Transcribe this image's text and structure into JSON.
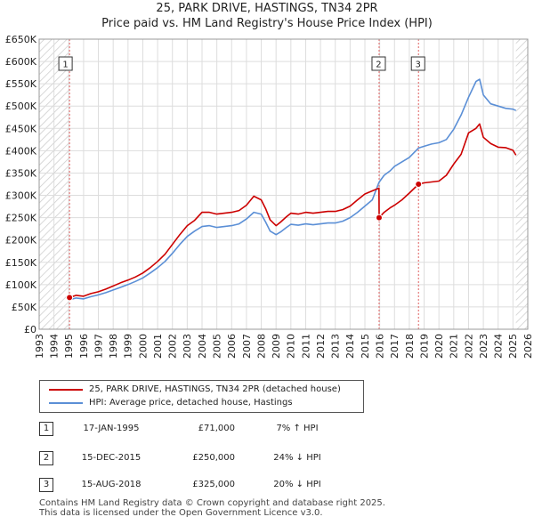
{
  "header": {
    "title_line1": "25, PARK DRIVE, HASTINGS, TN34 2PR",
    "title_line2": "Price paid vs. HM Land Registry's House Price Index (HPI)"
  },
  "chart_data": {
    "type": "line",
    "title": "25, PARK DRIVE, HASTINGS, TN34 2PR",
    "subtitle": "Price paid vs. HM Land Registry's House Price Index (HPI)",
    "xlabel": "",
    "ylabel": "",
    "xlim": [
      1993,
      2026
    ],
    "ylim": [
      0,
      650000
    ],
    "x_ticks": [
      1993,
      1994,
      1995,
      1996,
      1997,
      1998,
      1999,
      2000,
      2001,
      2002,
      2003,
      2004,
      2005,
      2006,
      2007,
      2008,
      2009,
      2010,
      2011,
      2012,
      2013,
      2014,
      2015,
      2016,
      2017,
      2018,
      2019,
      2020,
      2021,
      2022,
      2023,
      2024,
      2025,
      2026
    ],
    "y_ticks": [
      0,
      50000,
      100000,
      150000,
      200000,
      250000,
      300000,
      350000,
      400000,
      450000,
      500000,
      550000,
      600000,
      650000
    ],
    "y_tick_labels": [
      "£0",
      "£50K",
      "£100K",
      "£150K",
      "£200K",
      "£250K",
      "£300K",
      "£350K",
      "£400K",
      "£450K",
      "£500K",
      "£550K",
      "£600K",
      "£650K"
    ],
    "grid": true,
    "hatched_regions": [
      [
        1993,
        1995.0
      ],
      [
        2025.2,
        2026
      ]
    ],
    "series": [
      {
        "name": "25, PARK DRIVE, HASTINGS, TN34 2PR (detached house)",
        "color": "#cc0000",
        "x": [
          1995.05,
          1995.5,
          1996,
          1996.5,
          1997,
          1997.5,
          1998,
          1998.5,
          1999,
          1999.5,
          2000,
          2000.5,
          2001,
          2001.5,
          2002,
          2002.5,
          2003,
          2003.5,
          2004,
          2004.5,
          2005,
          2005.5,
          2006,
          2006.5,
          2007,
          2007.5,
          2008,
          2008.3,
          2008.6,
          2009,
          2009.3,
          2009.7,
          2010,
          2010.5,
          2011,
          2011.5,
          2012,
          2012.5,
          2013,
          2013.5,
          2014,
          2014.5,
          2015,
          2015.5,
          2015.95,
          2015.96,
          2016.3,
          2016.7,
          2017,
          2017.5,
          2018,
          2018.62,
          2019,
          2019.5,
          2020,
          2020.5,
          2021,
          2021.5,
          2022,
          2022.5,
          2022.75,
          2023,
          2023.5,
          2024,
          2024.5,
          2025,
          2025.2
        ],
        "y": [
          71000,
          76000,
          74000,
          80000,
          84000,
          90000,
          97000,
          104000,
          110000,
          117000,
          126000,
          138000,
          152000,
          168000,
          190000,
          212000,
          232000,
          244000,
          262000,
          262000,
          258000,
          260000,
          262000,
          266000,
          278000,
          298000,
          290000,
          270000,
          245000,
          232000,
          240000,
          252000,
          260000,
          258000,
          262000,
          260000,
          262000,
          264000,
          264000,
          268000,
          276000,
          290000,
          303000,
          310000,
          316000,
          250000,
          262000,
          272000,
          278000,
          290000,
          305000,
          325000,
          328000,
          330000,
          332000,
          345000,
          370000,
          392000,
          440000,
          450000,
          460000,
          430000,
          416000,
          408000,
          407000,
          401000,
          390000
        ]
      },
      {
        "name": "HPI: Average price, detached house, Hastings",
        "color": "#5b8fd6",
        "x": [
          1995.05,
          1995.5,
          1996,
          1996.5,
          1997,
          1997.5,
          1998,
          1998.5,
          1999,
          1999.5,
          2000,
          2000.5,
          2001,
          2001.5,
          2002,
          2002.5,
          2003,
          2003.5,
          2004,
          2004.5,
          2005,
          2005.5,
          2006,
          2006.5,
          2007,
          2007.5,
          2008,
          2008.3,
          2008.6,
          2009,
          2009.3,
          2009.7,
          2010,
          2010.5,
          2011,
          2011.5,
          2012,
          2012.5,
          2013,
          2013.5,
          2014,
          2014.5,
          2015,
          2015.5,
          2015.95,
          2016.3,
          2016.7,
          2017,
          2017.5,
          2018,
          2018.62,
          2019,
          2019.5,
          2020,
          2020.5,
          2021,
          2021.5,
          2022,
          2022.5,
          2022.75,
          2023,
          2023.5,
          2024,
          2024.5,
          2025,
          2025.2
        ],
        "y": [
          66000,
          70000,
          68000,
          73000,
          77000,
          82000,
          88000,
          94000,
          100000,
          107000,
          115000,
          126000,
          138000,
          152000,
          170000,
          190000,
          208000,
          220000,
          230000,
          232000,
          228000,
          230000,
          232000,
          236000,
          247000,
          262000,
          258000,
          240000,
          220000,
          212000,
          218000,
          228000,
          235000,
          233000,
          236000,
          234000,
          236000,
          238000,
          238000,
          242000,
          250000,
          262000,
          276000,
          290000,
          329000,
          345000,
          355000,
          365000,
          375000,
          385000,
          406000,
          410000,
          415000,
          418000,
          425000,
          448000,
          480000,
          520000,
          555000,
          560000,
          525000,
          505000,
          500000,
          495000,
          493000,
          490000
        ]
      }
    ],
    "transactions": [
      {
        "n": "1",
        "x": 1995.05,
        "y": 71000
      },
      {
        "n": "2",
        "x": 2015.96,
        "y": 250000
      },
      {
        "n": "3",
        "x": 2018.62,
        "y": 325000
      }
    ]
  },
  "legend": {
    "items": [
      {
        "label": "25, PARK DRIVE, HASTINGS, TN34 2PR (detached house)",
        "color": "#cc0000"
      },
      {
        "label": "HPI: Average price, detached house, Hastings",
        "color": "#5b8fd6"
      }
    ]
  },
  "table": {
    "rows": [
      {
        "n": "1",
        "date": "17-JAN-1995",
        "price": "£71,000",
        "hpi": "7% ↑ HPI"
      },
      {
        "n": "2",
        "date": "15-DEC-2015",
        "price": "£250,000",
        "hpi": "24% ↓ HPI"
      },
      {
        "n": "3",
        "date": "15-AUG-2018",
        "price": "£325,000",
        "hpi": "20% ↓ HPI"
      }
    ]
  },
  "footer": {
    "line1": "Contains HM Land Registry data © Crown copyright and database right 2025.",
    "line2": "This data is licensed under the Open Government Licence v3.0."
  }
}
